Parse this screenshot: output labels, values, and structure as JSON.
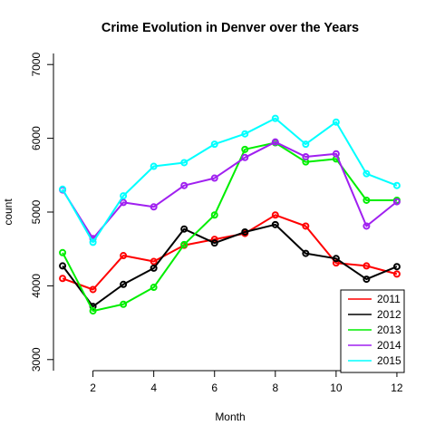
{
  "chart_data": {
    "type": "line",
    "title": "Crime Evolution in Denver over the Years",
    "xlabel": "Month",
    "ylabel": "count",
    "xlim": [
      0.7,
      12.3
    ],
    "ylim": [
      2850,
      7150
    ],
    "x_ticks": [
      2,
      4,
      6,
      8,
      10,
      12
    ],
    "y_ticks": [
      3000,
      4000,
      5000,
      6000,
      7000
    ],
    "grid": false,
    "legend_position": "bottom-right",
    "x": [
      1,
      2,
      3,
      4,
      5,
      6,
      7,
      8,
      9,
      10,
      11,
      12
    ],
    "series": [
      {
        "name": "2011",
        "color": "#ff0000",
        "values": [
          4100,
          3950,
          4410,
          4330,
          4550,
          4630,
          4710,
          4960,
          4810,
          4310,
          4270,
          4160
        ]
      },
      {
        "name": "2012",
        "color": "#000000",
        "values": [
          4270,
          3720,
          4020,
          4240,
          4770,
          4580,
          4730,
          4830,
          4440,
          4370,
          4090,
          4260
        ]
      },
      {
        "name": "2013",
        "color": "#00ee00",
        "values": [
          4450,
          3660,
          3750,
          3980,
          4560,
          4960,
          5850,
          5940,
          5680,
          5720,
          5160,
          5160
        ]
      },
      {
        "name": "2014",
        "color": "#a020f0",
        "values": [
          5300,
          4640,
          5130,
          5070,
          5360,
          5460,
          5740,
          5950,
          5750,
          5790,
          4810,
          5140
        ]
      },
      {
        "name": "2015",
        "color": "#00ffff",
        "values": [
          5310,
          4590,
          5220,
          5620,
          5670,
          5920,
          6060,
          6270,
          5920,
          6220,
          5520,
          5360
        ]
      }
    ]
  }
}
